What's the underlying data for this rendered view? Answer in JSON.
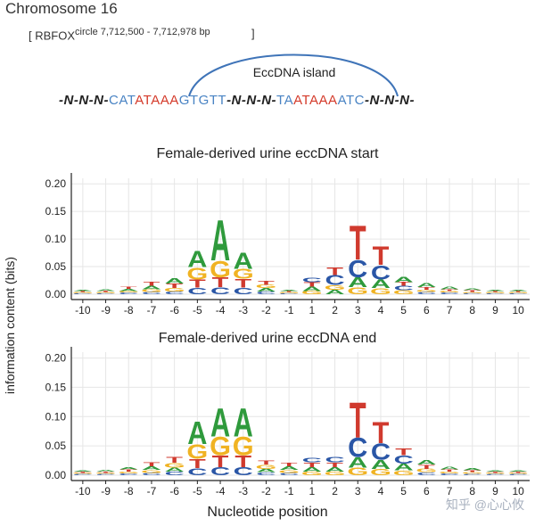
{
  "header": {
    "chromosome": "Chromosome 16",
    "gene_bracket": "[ RBFOX",
    "gene_sup": "circle 7,712,500 - 7,712,978 bp",
    "bracket_close": "]",
    "island_label": "EccDNA island"
  },
  "sequence": [
    {
      "t": "-N-N-N-",
      "k": "gap"
    },
    {
      "t": "CAT",
      "k": "b"
    },
    {
      "t": "ATAAA",
      "k": "r"
    },
    {
      "t": "GTGTT",
      "k": "b"
    },
    {
      "t": "-N-N-N-",
      "k": "gap"
    },
    {
      "t": "TA",
      "k": "b"
    },
    {
      "t": "ATAAA",
      "k": "r"
    },
    {
      "t": "ATC",
      "k": "b"
    },
    {
      "t": "-N-N-N-",
      "k": "gap"
    }
  ],
  "axis": {
    "ylabel": "information content (bits)",
    "xlabel": "Nucleotide position"
  },
  "watermark": "知乎 @心心攸",
  "colors": {
    "A": "#2f9a3c",
    "C": "#2a56a6",
    "G": "#f0b323",
    "T": "#d03a2e",
    "seq_blue": "#4a84c4",
    "seq_red": "#d43a2a"
  },
  "chart_data": [
    {
      "type": "sequence-logo",
      "title": "Female-derived urine eccDNA start",
      "ylabel": "information content (bits)",
      "xlabel": "Nucleotide position",
      "ylim": [
        0,
        0.21
      ],
      "yticks": [
        "0.00",
        "0.05",
        "0.10",
        "0.15",
        "0.20"
      ],
      "positions": [
        "-10",
        "-9",
        "-8",
        "-7",
        "-6",
        "-5",
        "-4",
        "-3",
        "-2",
        "-1",
        "1",
        "2",
        "3",
        "4",
        "5",
        "6",
        "7",
        "8",
        "9",
        "10"
      ],
      "stacks": [
        [
          [
            "C",
            0.002
          ],
          [
            "G",
            0.002
          ],
          [
            "T",
            0.002
          ],
          [
            "A",
            0.002
          ]
        ],
        [
          [
            "C",
            0.002
          ],
          [
            "G",
            0.002
          ],
          [
            "T",
            0.002
          ],
          [
            "A",
            0.003
          ]
        ],
        [
          [
            "C",
            0.003
          ],
          [
            "G",
            0.003
          ],
          [
            "A",
            0.004
          ],
          [
            "T",
            0.004
          ]
        ],
        [
          [
            "C",
            0.004
          ],
          [
            "G",
            0.005
          ],
          [
            "A",
            0.006
          ],
          [
            "T",
            0.007
          ]
        ],
        [
          [
            "C",
            0.005
          ],
          [
            "G",
            0.006
          ],
          [
            "T",
            0.008
          ],
          [
            "A",
            0.01
          ]
        ],
        [
          [
            "C",
            0.012
          ],
          [
            "T",
            0.015
          ],
          [
            "G",
            0.022
          ],
          [
            "A",
            0.03
          ]
        ],
        [
          [
            "C",
            0.013
          ],
          [
            "T",
            0.018
          ],
          [
            "G",
            0.03
          ],
          [
            "A",
            0.075
          ]
        ],
        [
          [
            "C",
            0.012
          ],
          [
            "T",
            0.016
          ],
          [
            "G",
            0.018
          ],
          [
            "A",
            0.03
          ]
        ],
        [
          [
            "C",
            0.005
          ],
          [
            "A",
            0.006
          ],
          [
            "G",
            0.006
          ],
          [
            "T",
            0.007
          ]
        ],
        [
          [
            "C",
            0.002
          ],
          [
            "G",
            0.002
          ],
          [
            "T",
            0.002
          ],
          [
            "A",
            0.002
          ]
        ],
        [
          [
            "G",
            0.006
          ],
          [
            "A",
            0.008
          ],
          [
            "T",
            0.008
          ],
          [
            "C",
            0.008
          ]
        ],
        [
          [
            "A",
            0.008
          ],
          [
            "G",
            0.009
          ],
          [
            "C",
            0.018
          ],
          [
            "T",
            0.014
          ]
        ],
        [
          [
            "G",
            0.013
          ],
          [
            "A",
            0.018
          ],
          [
            "C",
            0.032
          ],
          [
            "T",
            0.064
          ]
        ],
        [
          [
            "G",
            0.011
          ],
          [
            "A",
            0.016
          ],
          [
            "C",
            0.026
          ],
          [
            "T",
            0.034
          ]
        ],
        [
          [
            "G",
            0.007
          ],
          [
            "C",
            0.008
          ],
          [
            "T",
            0.007
          ],
          [
            "A",
            0.01
          ]
        ],
        [
          [
            "C",
            0.004
          ],
          [
            "G",
            0.004
          ],
          [
            "T",
            0.005
          ],
          [
            "A",
            0.007
          ]
        ],
        [
          [
            "C",
            0.003
          ],
          [
            "G",
            0.003
          ],
          [
            "T",
            0.003
          ],
          [
            "A",
            0.005
          ]
        ],
        [
          [
            "C",
            0.002
          ],
          [
            "G",
            0.002
          ],
          [
            "T",
            0.003
          ],
          [
            "A",
            0.003
          ]
        ],
        [
          [
            "C",
            0.002
          ],
          [
            "G",
            0.002
          ],
          [
            "T",
            0.002
          ],
          [
            "A",
            0.002
          ]
        ],
        [
          [
            "C",
            0.002
          ],
          [
            "G",
            0.002
          ],
          [
            "T",
            0.002
          ],
          [
            "A",
            0.002
          ]
        ]
      ]
    },
    {
      "type": "sequence-logo",
      "title": "Female-derived urine eccDNA end",
      "ylabel": "information content (bits)",
      "xlabel": "Nucleotide position",
      "ylim": [
        0,
        0.21
      ],
      "yticks": [
        "0.00",
        "0.05",
        "0.10",
        "0.15",
        "0.20"
      ],
      "positions": [
        "-10",
        "-9",
        "-8",
        "-7",
        "-6",
        "-5",
        "-4",
        "-3",
        "-2",
        "-1",
        "1",
        "2",
        "3",
        "4",
        "5",
        "6",
        "7",
        "8",
        "9",
        "10"
      ],
      "stacks": [
        [
          [
            "C",
            0.002
          ],
          [
            "G",
            0.002
          ],
          [
            "T",
            0.002
          ],
          [
            "A",
            0.002
          ]
        ],
        [
          [
            "C",
            0.002
          ],
          [
            "G",
            0.002
          ],
          [
            "T",
            0.002
          ],
          [
            "A",
            0.003
          ]
        ],
        [
          [
            "C",
            0.003
          ],
          [
            "G",
            0.003
          ],
          [
            "T",
            0.004
          ],
          [
            "A",
            0.004
          ]
        ],
        [
          [
            "C",
            0.004
          ],
          [
            "G",
            0.005
          ],
          [
            "A",
            0.006
          ],
          [
            "T",
            0.007
          ]
        ],
        [
          [
            "C",
            0.006
          ],
          [
            "A",
            0.007
          ],
          [
            "G",
            0.008
          ],
          [
            "T",
            0.01
          ]
        ],
        [
          [
            "C",
            0.012
          ],
          [
            "T",
            0.016
          ],
          [
            "G",
            0.025
          ],
          [
            "A",
            0.04
          ]
        ],
        [
          [
            "C",
            0.014
          ],
          [
            "T",
            0.02
          ],
          [
            "G",
            0.032
          ],
          [
            "A",
            0.05
          ]
        ],
        [
          [
            "C",
            0.014
          ],
          [
            "T",
            0.02
          ],
          [
            "G",
            0.032
          ],
          [
            "A",
            0.05
          ]
        ],
        [
          [
            "C",
            0.005
          ],
          [
            "A",
            0.006
          ],
          [
            "G",
            0.007
          ],
          [
            "T",
            0.007
          ]
        ],
        [
          [
            "C",
            0.004
          ],
          [
            "G",
            0.005
          ],
          [
            "A",
            0.006
          ],
          [
            "T",
            0.006
          ]
        ],
        [
          [
            "G",
            0.006
          ],
          [
            "A",
            0.008
          ],
          [
            "T",
            0.008
          ],
          [
            "C",
            0.008
          ]
        ],
        [
          [
            "G",
            0.006
          ],
          [
            "A",
            0.008
          ],
          [
            "T",
            0.008
          ],
          [
            "C",
            0.009
          ]
        ],
        [
          [
            "G",
            0.013
          ],
          [
            "A",
            0.018
          ],
          [
            "C",
            0.034
          ],
          [
            "T",
            0.062
          ]
        ],
        [
          [
            "G",
            0.011
          ],
          [
            "A",
            0.016
          ],
          [
            "C",
            0.028
          ],
          [
            "T",
            0.038
          ]
        ],
        [
          [
            "G",
            0.008
          ],
          [
            "A",
            0.012
          ],
          [
            "C",
            0.014
          ],
          [
            "T",
            0.012
          ]
        ],
        [
          [
            "C",
            0.005
          ],
          [
            "G",
            0.006
          ],
          [
            "T",
            0.007
          ],
          [
            "A",
            0.008
          ]
        ],
        [
          [
            "C",
            0.003
          ],
          [
            "G",
            0.003
          ],
          [
            "T",
            0.004
          ],
          [
            "A",
            0.005
          ]
        ],
        [
          [
            "C",
            0.002
          ],
          [
            "G",
            0.003
          ],
          [
            "T",
            0.003
          ],
          [
            "A",
            0.004
          ]
        ],
        [
          [
            "C",
            0.002
          ],
          [
            "G",
            0.002
          ],
          [
            "T",
            0.002
          ],
          [
            "A",
            0.002
          ]
        ],
        [
          [
            "C",
            0.002
          ],
          [
            "G",
            0.002
          ],
          [
            "T",
            0.002
          ],
          [
            "A",
            0.002
          ]
        ]
      ]
    }
  ]
}
